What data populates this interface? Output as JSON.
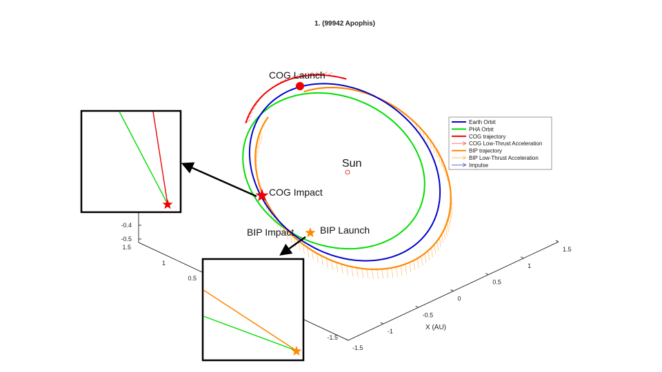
{
  "chart_data": {
    "type": "line",
    "title": "1. (99942 Apophis)",
    "xlabel": "X (AU)",
    "x_ticks": [
      "-1.5",
      "-1",
      "-0.5",
      "0",
      "0.5",
      "1",
      "1.5"
    ],
    "y_ticks": [
      "-1.5",
      "0.5",
      "1",
      "1.5"
    ],
    "z_ticks": [
      "-0.4",
      "-0.5"
    ],
    "grid": false,
    "legend_position": "right",
    "legend": [
      {
        "label": "Earth Orbit",
        "color": "#0000cc",
        "style": "line"
      },
      {
        "label": "PHA Orbit",
        "color": "#00dd00",
        "style": "line"
      },
      {
        "label": "COG trajectory",
        "color": "#ee0000",
        "style": "line"
      },
      {
        "label": "COG Low-Thrust Acceleration",
        "color": "#ff6666",
        "style": "arrow"
      },
      {
        "label": "BIP trajectory",
        "color": "#ff8800",
        "style": "line"
      },
      {
        "label": "BIP Low-Thrust Acceleration",
        "color": "#ffbb66",
        "style": "arrow"
      },
      {
        "label": "Impulse",
        "color": "#5555cc",
        "style": "arrow"
      }
    ],
    "annotations": {
      "sun": "Sun",
      "cog_launch": "COG Launch",
      "cog_impact": "COG Impact",
      "bip_impact": "BIP Impact",
      "bip_launch": "BIP Launch"
    },
    "colors": {
      "earth": "#0000cc",
      "pha": "#00dd00",
      "cog": "#ee0000",
      "cog_thrust": "#ff6666",
      "bip": "#ff8800",
      "bip_thrust": "#ffbb66",
      "impulse": "#5555cc",
      "axis": "#333333"
    }
  }
}
